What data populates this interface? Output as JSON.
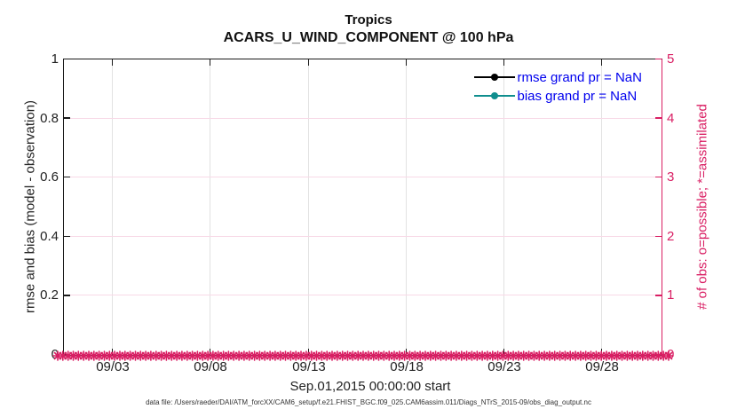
{
  "title": {
    "line1": "Tropics",
    "line2": "ACARS_U_WIND_COMPONENT @ 100 hPa"
  },
  "axes": {
    "left": {
      "label": "rmse and bias (model - observation)",
      "ticks": [
        "0",
        "0.2",
        "0.4",
        "0.6",
        "0.8",
        "1"
      ]
    },
    "right": {
      "label": "# of obs: o=possible; *=assimilated",
      "ticks": [
        "0",
        "1",
        "2",
        "3",
        "4",
        "5"
      ]
    },
    "x": {
      "label": "Sep.01,2015 00:00:00 start",
      "ticks": [
        "09/03",
        "09/08",
        "09/13",
        "09/18",
        "09/23",
        "09/28"
      ]
    }
  },
  "legend": {
    "items": [
      {
        "label": "rmse grand pr = NaN",
        "color": "#000000"
      },
      {
        "label": "bias grand pr = NaN",
        "color": "#0f8e8e"
      }
    ]
  },
  "footer": {
    "text": "data file: /Users/raeder/DAI/ATM_forcXX/CAM6_setup/f.e21.FHIST_BGC.f09_025.CAM6assim.011/Diags_NTrS_2015-09/obs_diag_output.nc"
  },
  "colors": {
    "accent_pink": "#d91e63",
    "grid_gray": "#e2e2e2",
    "grid_pink": "#f8d9e7",
    "teal": "#0f8e8e",
    "legend_blue": "#0000ee",
    "axis_black": "#1a1a1a"
  },
  "chart_data": {
    "type": "line",
    "title": "Tropics",
    "subtitle": "ACARS_U_WIND_COMPONENT @ 100 hPa",
    "x_axis": {
      "label": "Sep.01,2015 00:00:00 start",
      "tick_labels": [
        "09/03",
        "09/08",
        "09/13",
        "09/18",
        "09/23",
        "09/28"
      ],
      "range": [
        "2015-09-01 00:00:00",
        "2015-09-30"
      ]
    },
    "y_axis_left": {
      "label": "rmse and bias (model - observation)",
      "ticks": [
        0,
        0.2,
        0.4,
        0.6,
        0.8,
        1
      ],
      "range": [
        0,
        1
      ]
    },
    "y_axis_right": {
      "label": "# of obs: o=possible; *=assimilated",
      "ticks": [
        0,
        1,
        2,
        3,
        4,
        5
      ],
      "range": [
        0,
        5
      ],
      "color": "#d91e63"
    },
    "series": [
      {
        "name": "rmse",
        "legend": "rmse grand pr = NaN",
        "color": "#000000",
        "values": "all NaN - no line drawn"
      },
      {
        "name": "bias",
        "legend": "bias grand pr = NaN",
        "color": "#0f8e8e",
        "values": "all NaN - no line drawn"
      },
      {
        "name": "# of obs possible",
        "marker": "o",
        "color": "#d91e63",
        "value_constant": 0,
        "note": "dense markers at y=0 across full x range"
      },
      {
        "name": "# of obs assimilated",
        "marker": "*",
        "color": "#d91e63",
        "value_constant": 0,
        "note": "dense markers at y=0 across full x range"
      }
    ],
    "grid": {
      "vertical": "on (light gray)",
      "horizontal": "on (light pink)"
    },
    "legend_position": "top-right inside axes, no box",
    "footer": "data file: /Users/raeder/DAI/ATM_forcXX/CAM6_setup/f.e21.FHIST_BGC.f09_025.CAM6assim.011/Diags_NTrS_2015-09/obs_diag_output.nc"
  }
}
